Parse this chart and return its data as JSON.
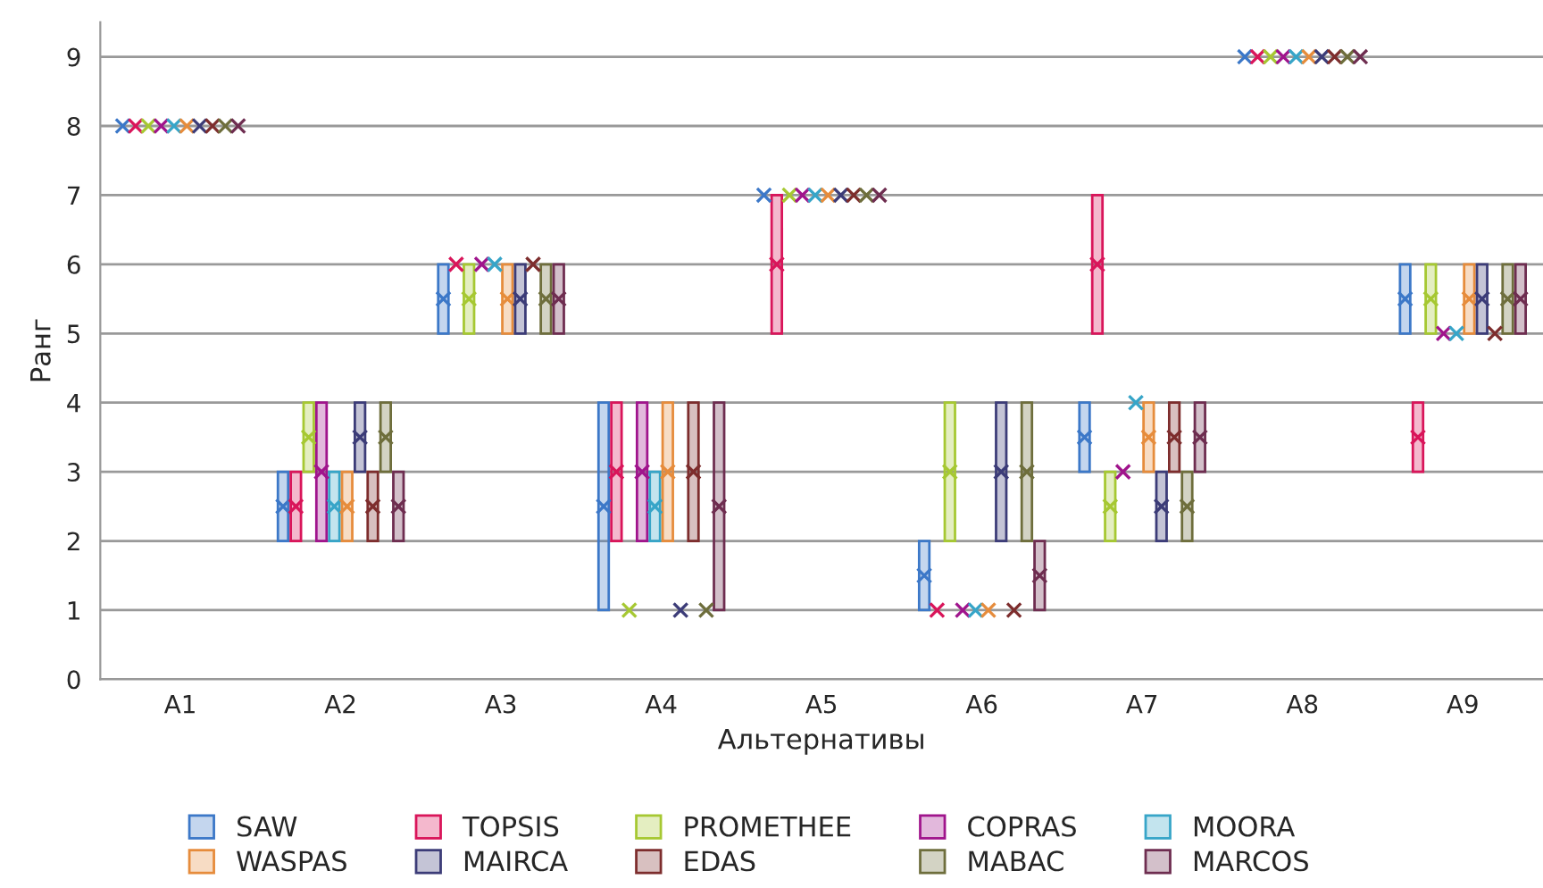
{
  "chart_data": {
    "type": "bar",
    "xlabel": "Альтернативы",
    "ylabel": "Ранг",
    "categories": [
      "A1",
      "A2",
      "A3",
      "A4",
      "A5",
      "A6",
      "A7",
      "A8",
      "A9"
    ],
    "ylim": [
      0,
      9.5
    ],
    "yticks": [
      0,
      1,
      2,
      3,
      4,
      5,
      6,
      7,
      8,
      9
    ],
    "grid": "y",
    "legend": "bottom",
    "series": [
      {
        "name": "SAW",
        "color": "#3c78c8",
        "base": [
          null,
          2,
          5,
          1,
          null,
          1,
          3,
          null,
          5
        ],
        "values": [
          null,
          1,
          1,
          3,
          null,
          1,
          1,
          null,
          1
        ]
      },
      {
        "name": "TOPSIS",
        "color": "#d9155a",
        "base": [
          null,
          2,
          null,
          2,
          5,
          null,
          5,
          null,
          3
        ],
        "values": [
          null,
          1,
          null,
          2,
          2,
          null,
          2,
          null,
          1
        ]
      },
      {
        "name": "PROMETHEE",
        "color": "#a6c832",
        "base": [
          null,
          3,
          5,
          null,
          null,
          2,
          2,
          null,
          5
        ],
        "values": [
          null,
          1,
          1,
          null,
          null,
          2,
          1,
          null,
          1
        ]
      },
      {
        "name": "COPRAS",
        "color": "#a0148c",
        "base": [
          null,
          2,
          null,
          2,
          null,
          null,
          null,
          null,
          null
        ],
        "values": [
          null,
          2,
          null,
          2,
          null,
          null,
          null,
          null,
          null
        ]
      },
      {
        "name": "MOORA",
        "color": "#37a5c8",
        "base": [
          null,
          2,
          null,
          2,
          null,
          null,
          null,
          null,
          null
        ],
        "values": [
          null,
          1,
          null,
          1,
          null,
          null,
          null,
          null,
          null
        ]
      },
      {
        "name": "WASPAS",
        "color": "#e68c3c",
        "base": [
          null,
          2,
          5,
          2,
          null,
          null,
          3,
          null,
          5
        ],
        "values": [
          null,
          1,
          1,
          2,
          null,
          null,
          1,
          null,
          1
        ]
      },
      {
        "name": "MAIRCA",
        "color": "#3c3c78",
        "base": [
          null,
          3,
          5,
          null,
          null,
          2,
          2,
          null,
          5
        ],
        "values": [
          null,
          1,
          1,
          null,
          null,
          2,
          1,
          null,
          1
        ]
      },
      {
        "name": "EDAS",
        "color": "#7d2d2d",
        "base": [
          null,
          2,
          null,
          2,
          null,
          null,
          3,
          null,
          null
        ],
        "values": [
          null,
          1,
          null,
          2,
          null,
          null,
          1,
          null,
          null
        ]
      },
      {
        "name": "MABAC",
        "color": "#6e6e3c",
        "base": [
          null,
          3,
          5,
          null,
          null,
          2,
          2,
          null,
          5
        ],
        "values": [
          null,
          1,
          1,
          null,
          null,
          2,
          1,
          null,
          1
        ]
      },
      {
        "name": "MARCOS",
        "color": "#6e2d50",
        "base": [
          null,
          2,
          5,
          1,
          null,
          1,
          3,
          null,
          5
        ],
        "values": [
          null,
          1,
          1,
          3,
          null,
          1,
          1,
          null,
          1
        ]
      },
      {
        "color": "#3c78c8",
        "type": "scatter",
        "marker": "cross",
        "values": [
          8,
          2.5,
          5.5,
          2.5,
          7,
          1.5,
          3.5,
          9,
          5.5
        ]
      },
      {
        "color": "#d9155a",
        "type": "scatter",
        "marker": "cross",
        "values": [
          8,
          2.5,
          6,
          3,
          6,
          1,
          6,
          9,
          3.5
        ]
      },
      {
        "color": "#a6c832",
        "type": "scatter",
        "marker": "cross",
        "values": [
          8,
          3.5,
          5.5,
          1,
          7,
          3,
          2.5,
          9,
          5.5
        ]
      },
      {
        "color": "#a0148c",
        "type": "scatter",
        "marker": "cross",
        "values": [
          8,
          3,
          6,
          3,
          7,
          1,
          3,
          9,
          5
        ]
      },
      {
        "color": "#37a5c8",
        "type": "scatter",
        "marker": "cross",
        "values": [
          8,
          2.5,
          6,
          2.5,
          7,
          1,
          4,
          9,
          5
        ]
      },
      {
        "color": "#e68c3c",
        "type": "scatter",
        "marker": "cross",
        "values": [
          8,
          2.5,
          5.5,
          3,
          7,
          1,
          3.5,
          9,
          5.5
        ]
      },
      {
        "color": "#3c3c78",
        "type": "scatter",
        "marker": "cross",
        "values": [
          8,
          3.5,
          5.5,
          1,
          7,
          3,
          2.5,
          9,
          5.5
        ]
      },
      {
        "color": "#7d2d2d",
        "type": "scatter",
        "marker": "cross",
        "values": [
          8,
          2.5,
          6,
          3,
          7,
          1,
          3.5,
          9,
          5
        ]
      },
      {
        "color": "#6e6e3c",
        "type": "scatter",
        "marker": "cross",
        "values": [
          8,
          3.5,
          5.5,
          1,
          7,
          3,
          2.5,
          9,
          5.5
        ]
      },
      {
        "color": "#6e2d50",
        "type": "scatter",
        "marker": "cross",
        "values": [
          8,
          2.5,
          5.5,
          2.5,
          7,
          1.5,
          3.5,
          9,
          5.5
        ]
      }
    ]
  }
}
